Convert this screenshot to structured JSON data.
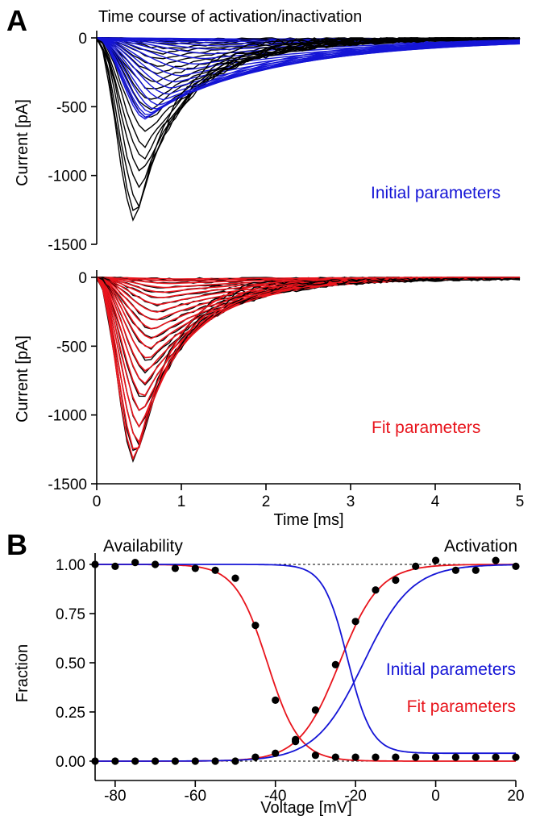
{
  "panel_labels": {
    "a": "A",
    "b": "B"
  },
  "colors": {
    "data": "#000000",
    "initial": "#1515d6",
    "fit": "#e8141c"
  },
  "chart_data": [
    {
      "type": "line",
      "title": "Time course of activation/inactivation",
      "xlabel": "",
      "ylabel": "Current [pA]",
      "xlim": [
        0,
        5
      ],
      "ylim": [
        -1500,
        0
      ],
      "yticks": [
        "0",
        "-500",
        "-1000",
        "-1500"
      ],
      "annotation": "Initial parameters",
      "series": [
        {
          "role": "data",
          "color": "#000000",
          "peak_currents_pA": [
            -12,
            -25,
            -45,
            -75,
            -110,
            -150,
            -200,
            -255,
            -315,
            -380,
            -450,
            -520,
            -600,
            -690,
            -780,
            -880,
            -990,
            -1100,
            -1210,
            -1300,
            -1350
          ],
          "peak_times_ms": [
            1.0,
            0.95,
            0.9,
            0.85,
            0.8,
            0.78,
            0.75,
            0.72,
            0.7,
            0.68,
            0.66,
            0.64,
            0.62,
            0.6,
            0.58,
            0.56,
            0.54,
            0.52,
            0.5,
            0.48,
            0.46
          ]
        },
        {
          "role": "model",
          "color": "#1515d6",
          "peak_currents_pA": [
            -8,
            -15,
            -25,
            -40,
            -60,
            -85,
            -115,
            -150,
            -190,
            -230,
            -275,
            -320,
            -365,
            -410,
            -450,
            -490,
            -520,
            -545,
            -565,
            -580,
            -590
          ],
          "peak_times_ms": [
            2.0,
            1.9,
            1.8,
            1.7,
            1.6,
            1.5,
            1.4,
            1.3,
            1.2,
            1.1,
            1.0,
            0.95,
            0.9,
            0.85,
            0.8,
            0.75,
            0.7,
            0.65,
            0.62,
            0.6,
            0.58
          ]
        }
      ]
    },
    {
      "type": "line",
      "xlabel": "Time [ms]",
      "ylabel": "Current [pA]",
      "xlim": [
        0,
        5
      ],
      "ylim": [
        -1500,
        0
      ],
      "xticks": [
        "0",
        "1",
        "2",
        "3",
        "4",
        "5"
      ],
      "yticks": [
        "0",
        "-500",
        "-1000",
        "-1500"
      ],
      "annotation": "Fit parameters",
      "series": [
        {
          "role": "data",
          "color": "#000000"
        },
        {
          "role": "model",
          "color": "#e8141c"
        }
      ]
    },
    {
      "type": "scatter",
      "xlabel": "Voltage [mV]",
      "ylabel": "Fraction",
      "xlim": [
        -85,
        20
      ],
      "ylim": [
        0,
        1
      ],
      "xticks": [
        "-80",
        "-60",
        "-40",
        "-20",
        "0",
        "20"
      ],
      "yticks": [
        "0.00",
        "0.25",
        "0.50",
        "0.75",
        "1.00"
      ],
      "labels": {
        "availability": "Availability",
        "activation": "Activation",
        "initial": "Initial parameters",
        "fit": "Fit parameters"
      },
      "availability_points": {
        "x": [
          -85,
          -80,
          -75,
          -70,
          -65,
          -60,
          -55,
          -50,
          -45,
          -40,
          -35,
          -30,
          -25,
          -20,
          -15,
          -10,
          -5,
          0,
          5,
          10,
          15,
          20
        ],
        "y": [
          1.0,
          0.99,
          1.01,
          1.0,
          0.98,
          0.98,
          0.97,
          0.93,
          0.69,
          0.31,
          0.1,
          0.03,
          0.02,
          0.02,
          0.02,
          0.02,
          0.02,
          0.02,
          0.02,
          0.02,
          0.02,
          0.02
        ]
      },
      "activation_points": {
        "x": [
          -85,
          -80,
          -75,
          -70,
          -65,
          -60,
          -55,
          -50,
          -45,
          -40,
          -35,
          -30,
          -25,
          -20,
          -15,
          -10,
          -5,
          0,
          5,
          10,
          15,
          20
        ],
        "y": [
          0.0,
          0.0,
          0.0,
          0.0,
          0.0,
          0.0,
          0.0,
          0.0,
          0.02,
          0.04,
          0.11,
          0.26,
          0.49,
          0.71,
          0.87,
          0.92,
          0.99,
          1.02,
          0.97,
          0.97,
          1.02,
          0.99
        ]
      },
      "fit_curves": {
        "availability": {
          "v_half": -42,
          "k": 4
        },
        "activation": {
          "v_half": -24,
          "k": 5
        }
      },
      "initial_curves": {
        "availability": {
          "v_half": -22,
          "k": 3,
          "floor": 0.04
        },
        "activation": {
          "v_half": -18,
          "k": 6
        }
      }
    }
  ]
}
